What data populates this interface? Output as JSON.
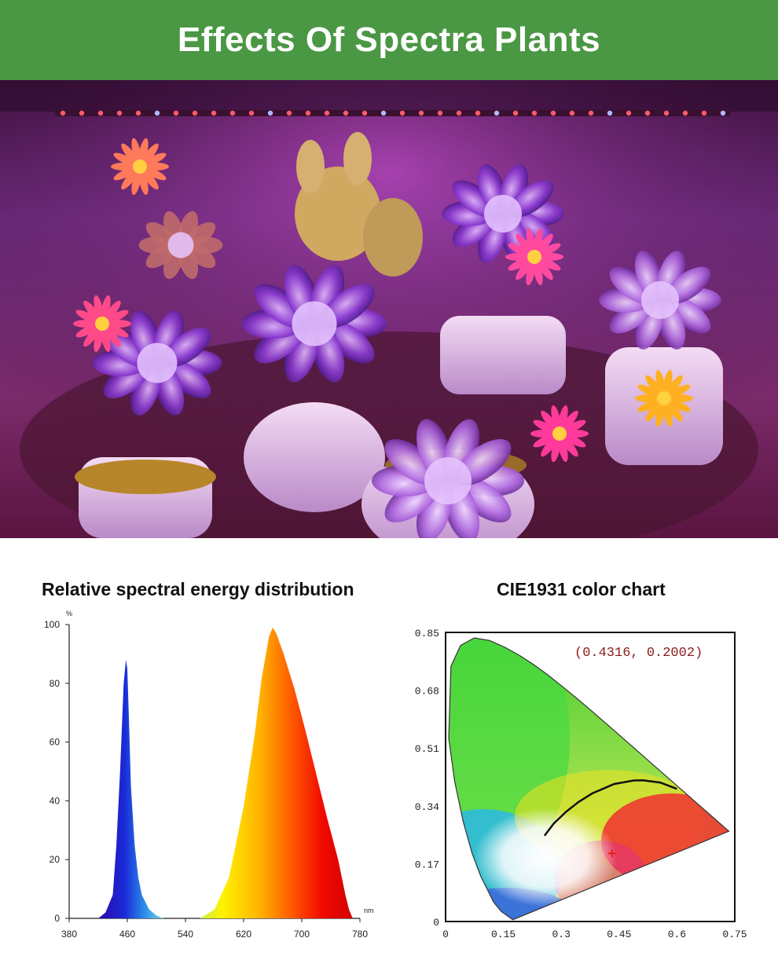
{
  "banner": {
    "title": "Effects Of Spectra Plants"
  },
  "photo": {
    "subject": "succulents-under-grow-light"
  },
  "colors": {
    "banner_bg": "#4a9744",
    "banner_text": "#ffffff"
  },
  "spectral_chart": {
    "title": "Relative spectral energy distribution",
    "y_unit": "%",
    "x_unit": "nm"
  },
  "cie_chart": {
    "title": "CIE1931 color chart",
    "annotation": "(0.4316,  0.2002)"
  },
  "chart_data": [
    {
      "type": "area",
      "title": "Relative spectral energy distribution",
      "ylabel": "%",
      "xlabel": "nm",
      "xlim": [
        380,
        780
      ],
      "ylim": [
        0,
        100
      ],
      "x_ticks": [
        "380",
        "460",
        "540",
        "620",
        "700",
        "780"
      ],
      "y_ticks": [
        "0",
        "20",
        "40",
        "60",
        "80",
        "100"
      ],
      "series": [
        {
          "x": [
            420,
            430,
            440,
            445,
            450,
            455,
            458,
            460,
            462,
            465,
            470,
            475,
            480,
            490,
            500,
            510
          ],
          "y": [
            0,
            2,
            8,
            25,
            50,
            80,
            88,
            85,
            70,
            45,
            25,
            14,
            8,
            3,
            1,
            0
          ]
        },
        {
          "x": [
            560,
            580,
            600,
            620,
            635,
            645,
            655,
            660,
            665,
            675,
            690,
            705,
            720,
            735,
            750,
            760,
            765,
            770
          ],
          "y": [
            0,
            3,
            14,
            38,
            62,
            82,
            96,
            99,
            97,
            90,
            78,
            64,
            49,
            34,
            20,
            8,
            3,
            0
          ]
        }
      ]
    },
    {
      "type": "scatter",
      "title": "CIE1931 color chart",
      "xlim": [
        0,
        0.75
      ],
      "ylim": [
        0,
        0.85
      ],
      "x_ticks": [
        "0",
        "0.15",
        "0.3",
        "0.45",
        "0.6",
        "0.75"
      ],
      "y_ticks": [
        "0",
        "0.17",
        "0.34",
        "0.51",
        "0.68",
        "0.85"
      ],
      "locus": [
        [
          0.1741,
          0.005
        ],
        [
          0.144,
          0.0297
        ],
        [
          0.1241,
          0.0578
        ],
        [
          0.0913,
          0.1327
        ],
        [
          0.0687,
          0.2007
        ],
        [
          0.0454,
          0.295
        ],
        [
          0.0235,
          0.4127
        ],
        [
          0.0082,
          0.5384
        ],
        [
          0.0139,
          0.7502
        ],
        [
          0.0389,
          0.812
        ],
        [
          0.0743,
          0.8338
        ],
        [
          0.1142,
          0.8262
        ],
        [
          0.1547,
          0.8059
        ],
        [
          0.1929,
          0.7816
        ],
        [
          0.2296,
          0.7543
        ],
        [
          0.2658,
          0.7243
        ],
        [
          0.3016,
          0.6923
        ],
        [
          0.3373,
          0.6589
        ],
        [
          0.3731,
          0.6245
        ],
        [
          0.4087,
          0.5896
        ],
        [
          0.4441,
          0.5547
        ],
        [
          0.4788,
          0.5202
        ],
        [
          0.5125,
          0.4866
        ],
        [
          0.5448,
          0.4544
        ],
        [
          0.5752,
          0.4242
        ],
        [
          0.6029,
          0.3965
        ],
        [
          0.627,
          0.3725
        ],
        [
          0.6482,
          0.3514
        ],
        [
          0.6658,
          0.334
        ],
        [
          0.6915,
          0.3083
        ],
        [
          0.7347,
          0.2653
        ]
      ],
      "planckian": [
        [
          0.2565,
          0.2525
        ],
        [
          0.2806,
          0.2883
        ],
        [
          0.3135,
          0.3237
        ],
        [
          0.3451,
          0.3516
        ],
        [
          0.3805,
          0.3768
        ],
        [
          0.4369,
          0.4041
        ],
        [
          0.4877,
          0.4146
        ],
        [
          0.5113,
          0.415
        ],
        [
          0.5565,
          0.4086
        ],
        [
          0.6,
          0.39
        ]
      ],
      "point": {
        "x": 0.4316,
        "y": 0.2002,
        "color": "#e2231a"
      }
    }
  ]
}
